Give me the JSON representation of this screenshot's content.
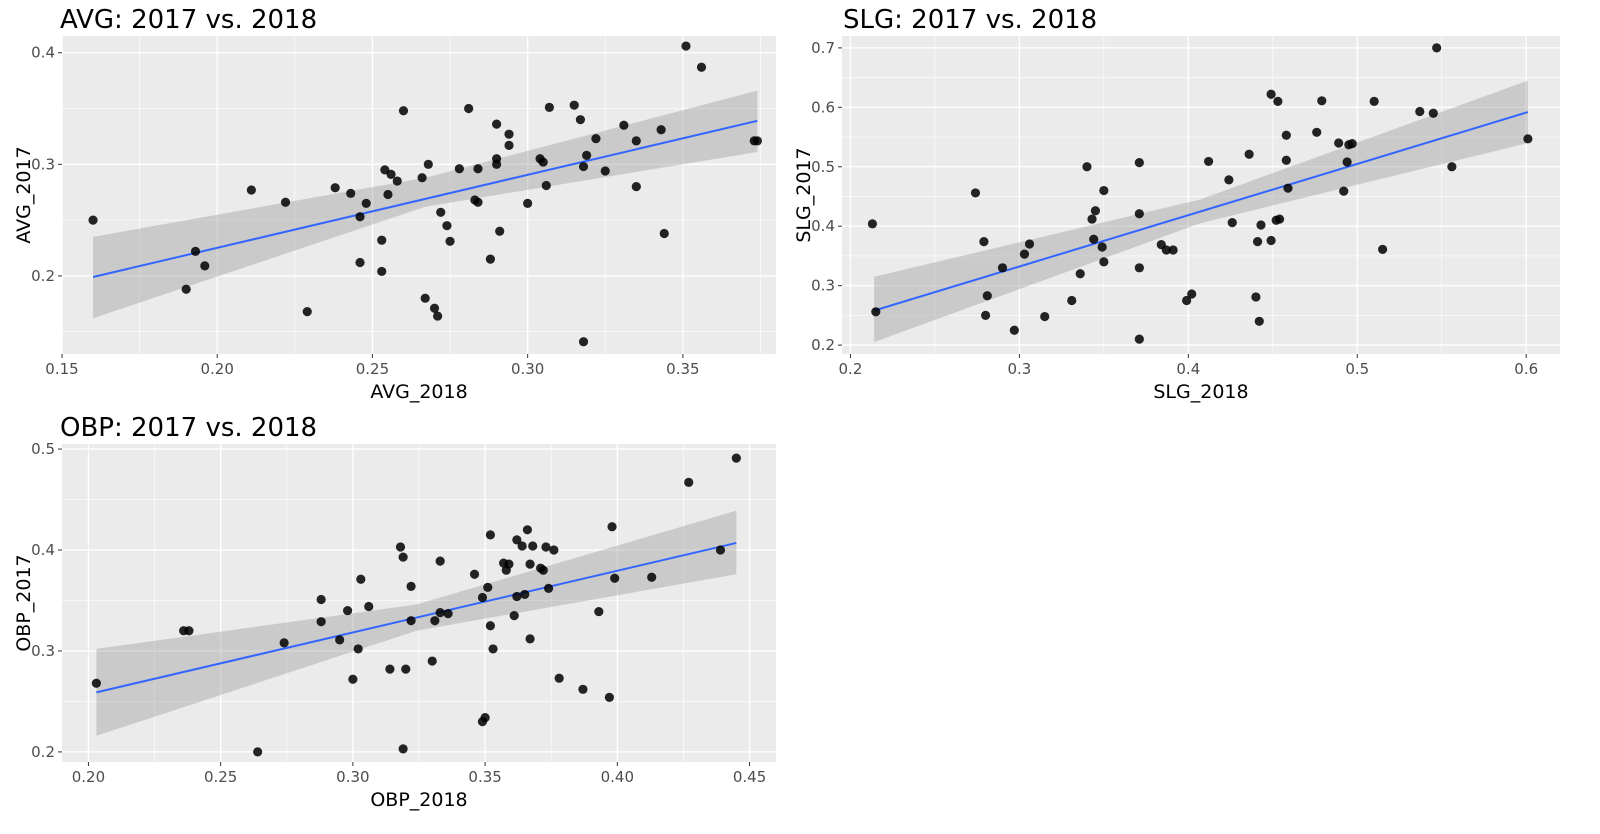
{
  "chart_data": [
    {
      "type": "scatter",
      "title": "AVG: 2017 vs. 2018",
      "xlabel": "AVG_2018",
      "ylabel": "AVG_2017",
      "xlim": [
        0.15,
        0.38
      ],
      "ylim": [
        0.13,
        0.415
      ],
      "x_ticks": [
        0.15,
        0.2,
        0.25,
        0.3,
        0.35
      ],
      "x_tick_labels": [
        "0.15",
        "0.20",
        "0.25",
        "0.30",
        "0.35"
      ],
      "y_ticks": [
        0.2,
        0.3,
        0.4
      ],
      "y_tick_labels": [
        "0.2",
        "0.3",
        "0.4"
      ],
      "grid": true,
      "smooth": {
        "method": "lm",
        "x": [
          0.16,
          0.374
        ],
        "y": [
          0.199,
          0.339
        ],
        "band_x": [
          0.16,
          0.267,
          0.374
        ],
        "band_lower": [
          0.162,
          0.262,
          0.311
        ],
        "band_upper": [
          0.235,
          0.288,
          0.366
        ]
      },
      "points": [
        [
          0.16,
          0.25
        ],
        [
          0.19,
          0.188
        ],
        [
          0.193,
          0.222
        ],
        [
          0.196,
          0.209
        ],
        [
          0.211,
          0.277
        ],
        [
          0.222,
          0.266
        ],
        [
          0.229,
          0.168
        ],
        [
          0.238,
          0.279
        ],
        [
          0.243,
          0.274
        ],
        [
          0.246,
          0.212
        ],
        [
          0.246,
          0.253
        ],
        [
          0.248,
          0.265
        ],
        [
          0.253,
          0.232
        ],
        [
          0.253,
          0.204
        ],
        [
          0.254,
          0.295
        ],
        [
          0.255,
          0.273
        ],
        [
          0.256,
          0.291
        ],
        [
          0.258,
          0.285
        ],
        [
          0.26,
          0.348
        ],
        [
          0.266,
          0.288
        ],
        [
          0.267,
          0.18
        ],
        [
          0.268,
          0.3
        ],
        [
          0.27,
          0.171
        ],
        [
          0.271,
          0.164
        ],
        [
          0.272,
          0.257
        ],
        [
          0.274,
          0.245
        ],
        [
          0.275,
          0.231
        ],
        [
          0.278,
          0.296
        ],
        [
          0.281,
          0.35
        ],
        [
          0.283,
          0.268
        ],
        [
          0.284,
          0.266
        ],
        [
          0.284,
          0.296
        ],
        [
          0.288,
          0.215
        ],
        [
          0.29,
          0.336
        ],
        [
          0.29,
          0.305
        ],
        [
          0.29,
          0.3
        ],
        [
          0.291,
          0.24
        ],
        [
          0.294,
          0.327
        ],
        [
          0.294,
          0.317
        ],
        [
          0.3,
          0.265
        ],
        [
          0.304,
          0.305
        ],
        [
          0.305,
          0.302
        ],
        [
          0.306,
          0.281
        ],
        [
          0.307,
          0.351
        ],
        [
          0.315,
          0.353
        ],
        [
          0.317,
          0.34
        ],
        [
          0.318,
          0.141
        ],
        [
          0.318,
          0.298
        ],
        [
          0.319,
          0.308
        ],
        [
          0.322,
          0.323
        ],
        [
          0.325,
          0.294
        ],
        [
          0.331,
          0.335
        ],
        [
          0.335,
          0.28
        ],
        [
          0.335,
          0.321
        ],
        [
          0.343,
          0.331
        ],
        [
          0.344,
          0.238
        ],
        [
          0.351,
          0.406
        ],
        [
          0.356,
          0.387
        ],
        [
          0.373,
          0.321
        ],
        [
          0.374,
          0.321
        ]
      ]
    },
    {
      "type": "scatter",
      "title": "SLG: 2017 vs. 2018",
      "xlabel": "SLG_2018",
      "ylabel": "SLG_2017",
      "xlim": [
        0.195,
        0.62
      ],
      "ylim": [
        0.185,
        0.72
      ],
      "x_ticks": [
        0.2,
        0.3,
        0.4,
        0.5,
        0.6
      ],
      "x_tick_labels": [
        "0.2",
        "0.3",
        "0.4",
        "0.5",
        "0.6"
      ],
      "y_ticks": [
        0.2,
        0.3,
        0.4,
        0.5,
        0.6,
        0.7
      ],
      "y_tick_labels": [
        "0.2",
        "0.3",
        "0.4",
        "0.5",
        "0.6",
        "0.7"
      ],
      "grid": true,
      "smooth": {
        "method": "lm",
        "x": [
          0.214,
          0.601
        ],
        "y": [
          0.258,
          0.592
        ],
        "band_x": [
          0.214,
          0.407,
          0.601
        ],
        "band_lower": [
          0.205,
          0.405,
          0.54
        ],
        "band_upper": [
          0.315,
          0.445,
          0.645
        ]
      },
      "points": [
        [
          0.213,
          0.404
        ],
        [
          0.215,
          0.256
        ],
        [
          0.274,
          0.456
        ],
        [
          0.279,
          0.374
        ],
        [
          0.28,
          0.25
        ],
        [
          0.281,
          0.283
        ],
        [
          0.29,
          0.33
        ],
        [
          0.297,
          0.225
        ],
        [
          0.303,
          0.353
        ],
        [
          0.306,
          0.37
        ],
        [
          0.315,
          0.248
        ],
        [
          0.331,
          0.275
        ],
        [
          0.336,
          0.32
        ],
        [
          0.34,
          0.5
        ],
        [
          0.343,
          0.412
        ],
        [
          0.344,
          0.378
        ],
        [
          0.345,
          0.426
        ],
        [
          0.349,
          0.365
        ],
        [
          0.35,
          0.46
        ],
        [
          0.35,
          0.34
        ],
        [
          0.371,
          0.507
        ],
        [
          0.371,
          0.421
        ],
        [
          0.371,
          0.33
        ],
        [
          0.371,
          0.21
        ],
        [
          0.384,
          0.369
        ],
        [
          0.387,
          0.36
        ],
        [
          0.391,
          0.36
        ],
        [
          0.399,
          0.275
        ],
        [
          0.402,
          0.286
        ],
        [
          0.412,
          0.509
        ],
        [
          0.424,
          0.478
        ],
        [
          0.426,
          0.406
        ],
        [
          0.436,
          0.521
        ],
        [
          0.44,
          0.281
        ],
        [
          0.441,
          0.374
        ],
        [
          0.442,
          0.24
        ],
        [
          0.443,
          0.402
        ],
        [
          0.449,
          0.622
        ],
        [
          0.449,
          0.376
        ],
        [
          0.452,
          0.41
        ],
        [
          0.453,
          0.61
        ],
        [
          0.454,
          0.412
        ],
        [
          0.458,
          0.553
        ],
        [
          0.458,
          0.511
        ],
        [
          0.459,
          0.464
        ],
        [
          0.476,
          0.558
        ],
        [
          0.479,
          0.611
        ],
        [
          0.489,
          0.54
        ],
        [
          0.492,
          0.459
        ],
        [
          0.494,
          0.508
        ],
        [
          0.495,
          0.537
        ],
        [
          0.497,
          0.539
        ],
        [
          0.51,
          0.61
        ],
        [
          0.515,
          0.361
        ],
        [
          0.537,
          0.593
        ],
        [
          0.545,
          0.59
        ],
        [
          0.547,
          0.7
        ],
        [
          0.556,
          0.5
        ],
        [
          0.601,
          0.547
        ]
      ]
    },
    {
      "type": "scatter",
      "title": "OBP: 2017 vs. 2018",
      "xlabel": "OBP_2018",
      "ylabel": "OBP_2017",
      "xlim": [
        0.19,
        0.46
      ],
      "ylim": [
        0.19,
        0.505
      ],
      "x_ticks": [
        0.2,
        0.25,
        0.3,
        0.35,
        0.4,
        0.45
      ],
      "x_tick_labels": [
        "0.20",
        "0.25",
        "0.30",
        "0.35",
        "0.40",
        "0.45"
      ],
      "y_ticks": [
        0.2,
        0.3,
        0.4,
        0.5
      ],
      "y_tick_labels": [
        "0.2",
        "0.3",
        "0.4",
        "0.5"
      ],
      "grid": true,
      "smooth": {
        "method": "lm",
        "x": [
          0.203,
          0.445
        ],
        "y": [
          0.259,
          0.407
        ],
        "band_x": [
          0.203,
          0.324,
          0.445
        ],
        "band_lower": [
          0.216,
          0.32,
          0.376
        ],
        "band_upper": [
          0.302,
          0.346,
          0.439
        ]
      },
      "points": [
        [
          0.203,
          0.268
        ],
        [
          0.236,
          0.32
        ],
        [
          0.238,
          0.32
        ],
        [
          0.264,
          0.2
        ],
        [
          0.274,
          0.308
        ],
        [
          0.288,
          0.351
        ],
        [
          0.288,
          0.329
        ],
        [
          0.295,
          0.311
        ],
        [
          0.298,
          0.34
        ],
        [
          0.3,
          0.272
        ],
        [
          0.302,
          0.302
        ],
        [
          0.303,
          0.371
        ],
        [
          0.306,
          0.344
        ],
        [
          0.314,
          0.282
        ],
        [
          0.318,
          0.403
        ],
        [
          0.319,
          0.393
        ],
        [
          0.319,
          0.203
        ],
        [
          0.32,
          0.282
        ],
        [
          0.322,
          0.364
        ],
        [
          0.322,
          0.33
        ],
        [
          0.33,
          0.29
        ],
        [
          0.331,
          0.33
        ],
        [
          0.333,
          0.389
        ],
        [
          0.333,
          0.338
        ],
        [
          0.336,
          0.337
        ],
        [
          0.346,
          0.376
        ],
        [
          0.349,
          0.353
        ],
        [
          0.349,
          0.23
        ],
        [
          0.35,
          0.234
        ],
        [
          0.351,
          0.363
        ],
        [
          0.352,
          0.325
        ],
        [
          0.352,
          0.415
        ],
        [
          0.353,
          0.302
        ],
        [
          0.357,
          0.387
        ],
        [
          0.358,
          0.38
        ],
        [
          0.359,
          0.386
        ],
        [
          0.361,
          0.335
        ],
        [
          0.362,
          0.354
        ],
        [
          0.362,
          0.41
        ],
        [
          0.364,
          0.404
        ],
        [
          0.365,
          0.356
        ],
        [
          0.366,
          0.42
        ],
        [
          0.367,
          0.312
        ],
        [
          0.367,
          0.386
        ],
        [
          0.368,
          0.404
        ],
        [
          0.371,
          0.382
        ],
        [
          0.372,
          0.38
        ],
        [
          0.373,
          0.403
        ],
        [
          0.374,
          0.362
        ],
        [
          0.376,
          0.4
        ],
        [
          0.378,
          0.273
        ],
        [
          0.387,
          0.262
        ],
        [
          0.393,
          0.339
        ],
        [
          0.397,
          0.254
        ],
        [
          0.398,
          0.423
        ],
        [
          0.399,
          0.372
        ],
        [
          0.413,
          0.373
        ],
        [
          0.427,
          0.467
        ],
        [
          0.439,
          0.4
        ],
        [
          0.445,
          0.491
        ]
      ]
    }
  ]
}
